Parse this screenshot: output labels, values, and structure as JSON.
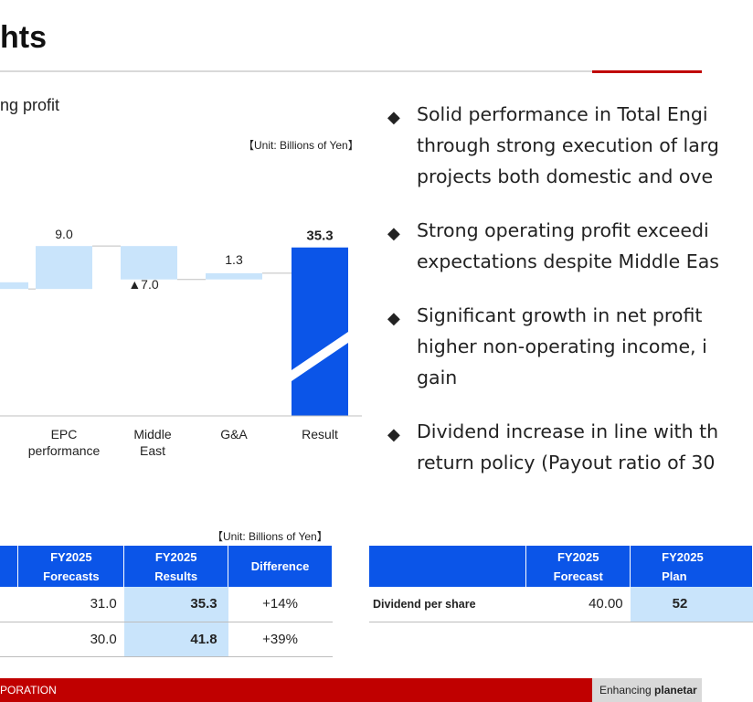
{
  "header": {
    "title": "hts"
  },
  "chart_section": {
    "subtitle": "ng profit",
    "unit": "【Unit: Billions of Yen】",
    "accent_light": "#c9e4fb",
    "accent_dark": "#0b55e8"
  },
  "chart_data": {
    "type": "bar",
    "subtype": "waterfall",
    "categories": [
      "",
      "EPC\nperformance",
      "Middle\nEast",
      "G&A",
      "Result"
    ],
    "values": [
      -1.4,
      9.0,
      -7.0,
      1.3,
      35.3
    ],
    "data_labels": [
      "",
      "9.0",
      "▲7.0",
      "1.3",
      "35.3"
    ],
    "value_axis_range": [
      0,
      42
    ],
    "grid": false,
    "legend": "none"
  },
  "bullets": [
    {
      "lines": [
        "Solid performance in Total Engi",
        "through strong execution of larg",
        "projects both domestic and ove"
      ]
    },
    {
      "lines": [
        "Strong operating profit exceedi",
        "expectations despite Middle Eas"
      ]
    },
    {
      "lines": [
        "Significant growth in net profit",
        "higher non-operating income, i",
        "gain"
      ]
    },
    {
      "lines": [
        "Dividend increase in line with th",
        "return policy (Payout ratio of 30"
      ]
    }
  ],
  "table1": {
    "unit": "【Unit: Billions of Yen】",
    "headers": [
      "",
      "FY2025\nForecasts",
      "FY2025\nResults",
      "Difference"
    ],
    "rows": [
      {
        "forecast": "31.0",
        "result": "35.3",
        "difference": "+14%"
      },
      {
        "forecast": "30.0",
        "result": "41.8",
        "difference": "+39%"
      }
    ]
  },
  "table2": {
    "headers": [
      "",
      "FY2025\nForecast",
      "FY2025\nPlan"
    ],
    "rows": [
      {
        "label": "Dividend per share",
        "forecast": "40.00",
        "plan": "52"
      }
    ]
  },
  "footer": {
    "left": "PORATION",
    "tagline_prefix": "Enhancing ",
    "tagline_bold": "planetar"
  }
}
